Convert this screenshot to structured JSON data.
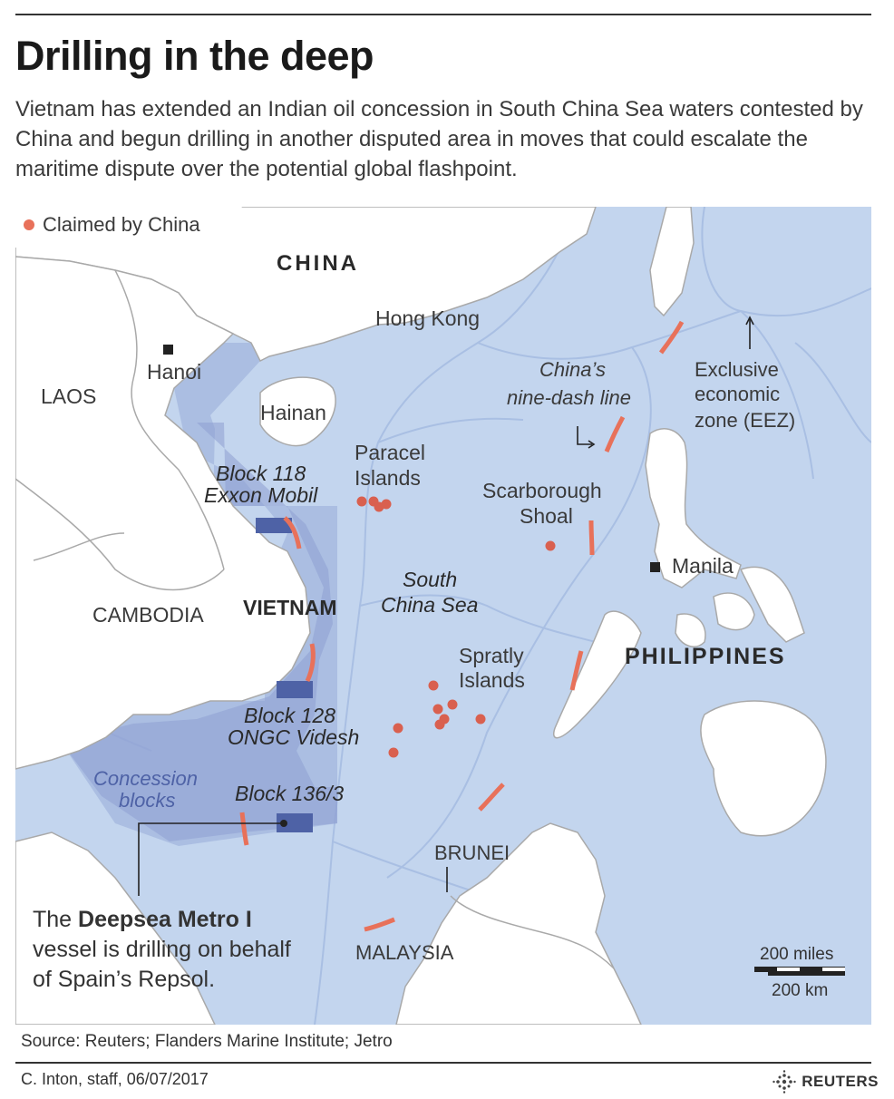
{
  "header": {
    "title": "Drilling in the deep",
    "subtitle": "Vietnam has extended an Indian oil concession in South China Sea waters contested by China and begun drilling in another disputed area in moves that could escalate the maritime dispute over the potential global flashpoint."
  },
  "legend": {
    "claimed": "Claimed by China"
  },
  "labels": {
    "china": "CHINA",
    "hong_kong": "Hong Kong",
    "hanoi": "Hanoi",
    "laos": "LAOS",
    "hainan": "Hainan",
    "paracel_1": "Paracel",
    "paracel_2": "Islands",
    "block118_1": "Block 118",
    "block118_2": "Exxon Mobil",
    "vietnam": "VIETNAM",
    "cambodia": "CAMBODIA",
    "scs_1": "South",
    "scs_2": "China Sea",
    "scarborough_1": "Scarborough",
    "scarborough_2": "Shoal",
    "manila": "Manila",
    "philippines": "PHILIPPINES",
    "spratly_1": "Spratly",
    "spratly_2": "Islands",
    "block128_1": "Block 128",
    "block128_2": "ONGC Videsh",
    "concession_1": "Concession",
    "concession_2": "blocks",
    "block136": "Block 136/3",
    "brunei": "BRUNEI",
    "malaysia": "MALAYSIA",
    "nine_dash_1": "China’s",
    "nine_dash_2": "nine-dash line",
    "eez_1": "Exclusive",
    "eez_2": "economic",
    "eez_3": "zone (EEZ)",
    "callout_pre": "The ",
    "callout_bold": "Deepsea Metro I",
    "callout_line2": "vessel is drilling on behalf",
    "callout_line3": "of Spain’s Repsol.",
    "scale_miles": "200 miles",
    "scale_km": "200 km"
  },
  "footer": {
    "source": "Source: Reuters; Flanders Marine Institute; Jetro",
    "credit": "C. Inton, staff,  06/07/2017",
    "brand": "REUTERS"
  },
  "colors": {
    "sea": "#c3d5ee",
    "land": "#ffffff",
    "border": "#a9a9a9",
    "eez": "#a9bfe3",
    "vietnam_eez": "#97acd9",
    "concession": "#8e9fd1",
    "block": "#4e62a6",
    "dash": "#e8715a",
    "claim_dot": "#d9604f"
  }
}
